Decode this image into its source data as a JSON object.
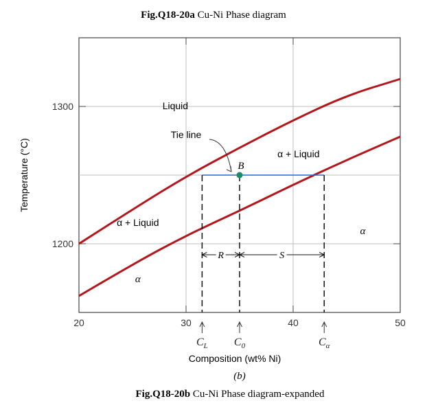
{
  "header": {
    "title_bold": "Fig.Q18-20a",
    "title_rest": " Cu-Ni Phase diagram"
  },
  "footer": {
    "caption_bold": "Fig.Q18-20b",
    "caption_rest": " Cu-Ni Phase diagram-expanded",
    "panel_label": "(b)"
  },
  "chart_data": {
    "type": "line",
    "title": "",
    "xlabel": "Composition (wt% Ni)",
    "ylabel": "Temperature (°C)",
    "xlim": [
      20,
      50
    ],
    "ylim": [
      1150,
      1350
    ],
    "x_ticks": [
      20,
      30,
      40,
      50
    ],
    "y_ticks": [
      1200,
      1300
    ],
    "grid": true,
    "series": [
      {
        "name": "liquidus",
        "x": [
          20,
          25,
          30,
          35,
          40,
          45,
          50
        ],
        "y": [
          1200,
          1225,
          1249,
          1270,
          1290,
          1308,
          1320
        ]
      },
      {
        "name": "solidus",
        "x": [
          20,
          25,
          30,
          35,
          40,
          45,
          50
        ],
        "y": [
          1162,
          1185,
          1206,
          1224,
          1243,
          1261,
          1278
        ]
      }
    ],
    "regions": {
      "liquid": "Liquid",
      "two_phase_upper": "α + Liquid",
      "two_phase_lower": "α + Liquid",
      "alpha_left": "α",
      "alpha_right": "α"
    },
    "tie_line": {
      "label": "Tie line",
      "temperature": 1250,
      "x_start": 31.5,
      "x_end": 42.9,
      "point_label": "B",
      "point_x": 35
    },
    "markers": [
      {
        "label_main": "C",
        "label_sub": "L",
        "x": 31.5
      },
      {
        "label_main": "C",
        "label_sub": "0",
        "x": 35
      },
      {
        "label_main": "C",
        "label_sub": "α",
        "x": 42.9
      }
    ],
    "lever": {
      "R": "R",
      "S": "S",
      "y": 1192
    },
    "colors": {
      "phase_curves": "#b5161b",
      "tie_line": "#1f6fd1",
      "point": "#1a8c6a",
      "grid": "#bdbdbd",
      "axes": "#444444"
    }
  }
}
